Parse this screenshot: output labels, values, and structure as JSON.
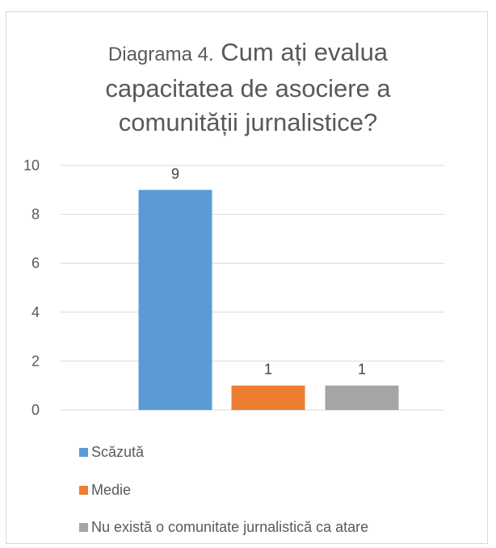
{
  "chart_data": {
    "type": "bar",
    "title_prefix": "Diagrama 4.",
    "title_line1": "Cum ați evalua",
    "title_line2": "capacitatea de asociere a",
    "title_line3": "comunității jurnalistice?",
    "categories": [
      "Scăzută",
      "Medie",
      "Nu există o comunitate jurnalistică ca atare"
    ],
    "values": [
      9,
      1,
      1
    ],
    "colors": [
      "#5b9bd5",
      "#ed7d31",
      "#a5a5a5"
    ],
    "ylim": [
      0,
      10
    ],
    "yticks": [
      "0",
      "2",
      "4",
      "6",
      "8",
      "10"
    ],
    "data_labels": [
      "9",
      "1",
      "1"
    ],
    "grid": true,
    "legend_position": "bottom-left"
  }
}
